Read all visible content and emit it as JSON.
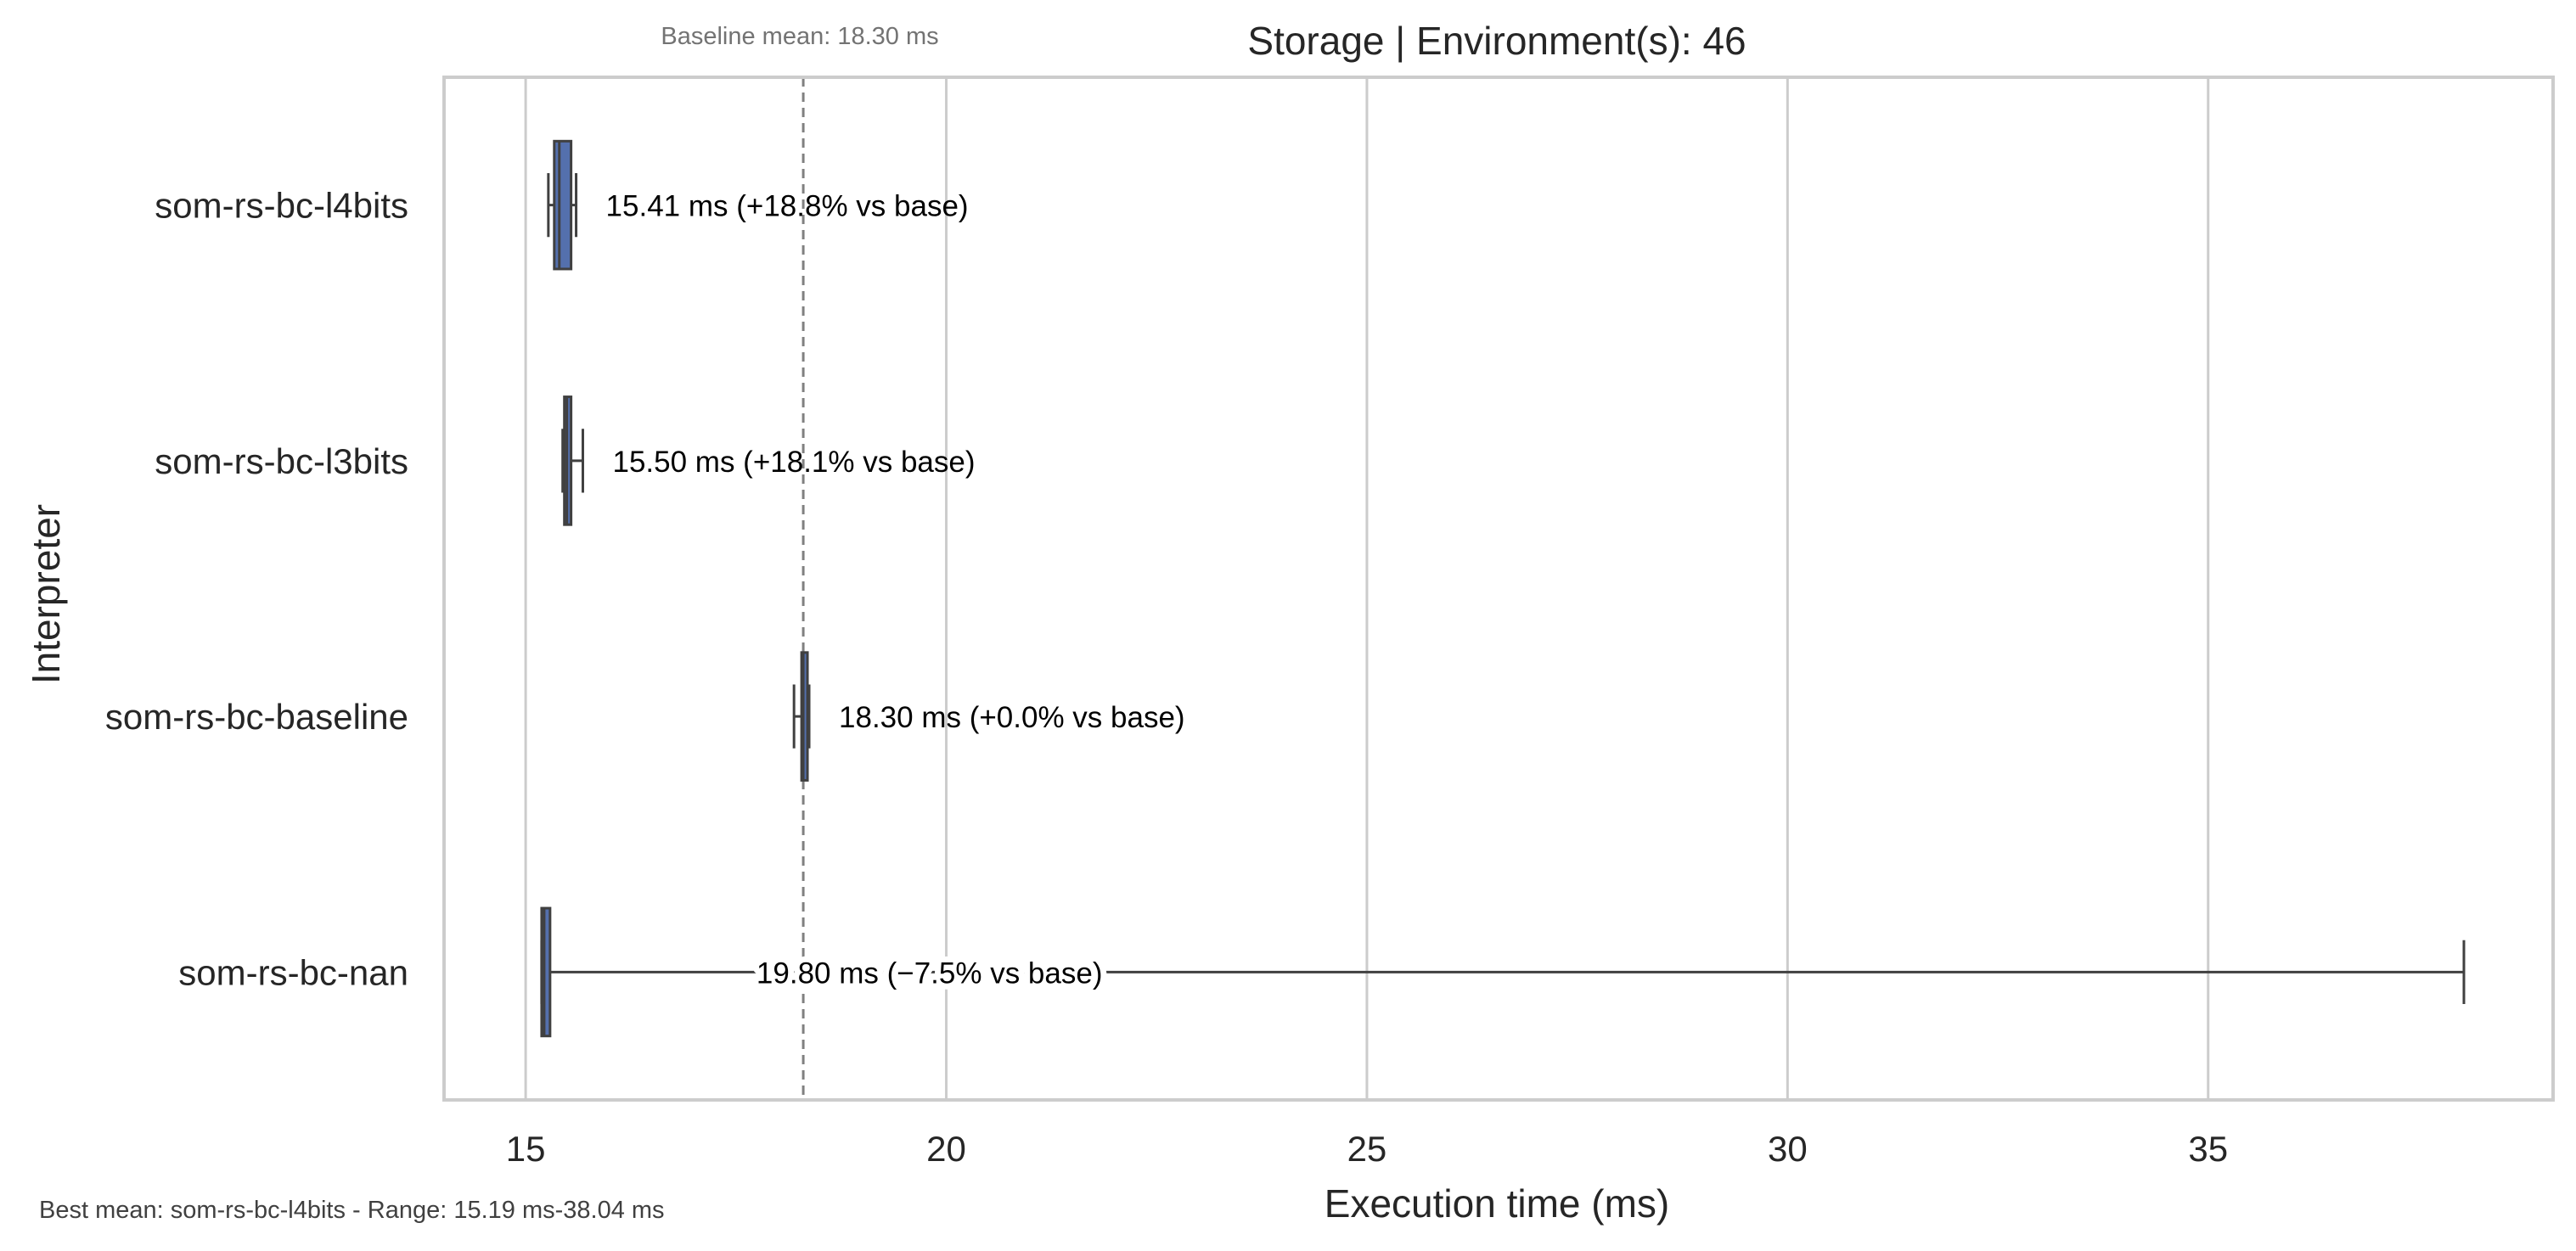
{
  "chart_data": {
    "type": "box",
    "orientation": "horizontal",
    "title": "Storage | Environment(s): 46",
    "xlabel": "Execution time (ms)",
    "ylabel": "Interpreter",
    "xlim": [
      14.03,
      39.1
    ],
    "xticks": [
      15,
      20,
      25,
      30,
      35
    ],
    "xtick_labels": [
      "15",
      "20",
      "25",
      "30",
      "35"
    ],
    "grid": "vertical",
    "categories": [
      "som-rs-bc-l4bits",
      "som-rs-bc-l3bits",
      "som-rs-bc-baseline",
      "som-rs-bc-nan"
    ],
    "boxes": [
      {
        "category": "som-rs-bc-l4bits",
        "whisker_low": 15.27,
        "q1": 15.34,
        "median": 15.4,
        "q3": 15.54,
        "whisker_high": 15.6,
        "mean": 15.41,
        "annotation": "15.41 ms  (+18.8% vs base)",
        "color": "#5470ad"
      },
      {
        "category": "som-rs-bc-l3bits",
        "whisker_low": 15.44,
        "q1": 15.46,
        "median": 15.49,
        "q3": 15.54,
        "whisker_high": 15.68,
        "mean": 15.5,
        "annotation": "15.50 ms  (+18.1% vs base)",
        "color": "#5470ad"
      },
      {
        "category": "som-rs-bc-baseline",
        "whisker_low": 18.19,
        "q1": 18.28,
        "median": 18.3,
        "q3": 18.35,
        "whisker_high": 18.37,
        "mean": 18.3,
        "annotation": "18.30 ms  (+0.0% vs base)",
        "color": "#5470ad"
      },
      {
        "category": "som-rs-bc-nan",
        "whisker_low": 15.19,
        "q1": 15.19,
        "median": 15.22,
        "q3": 15.29,
        "whisker_high": 38.04,
        "mean": 19.8,
        "annotation": "19.80 ms  (−7.5% vs base)",
        "color": "#5470ad"
      }
    ],
    "baseline": {
      "value": 18.3,
      "label": "Baseline mean: 18.30 ms",
      "style": "dashed",
      "color": "#808080"
    },
    "footer_note": "Best mean: som-rs-bc-l4bits - Range: 15.19 ms-38.04 ms"
  },
  "colors": {
    "box_fill": "#5470ad",
    "edge": "#404040",
    "grid": "#cccccc",
    "frame": "#cccccc",
    "baseline": "#808080"
  }
}
